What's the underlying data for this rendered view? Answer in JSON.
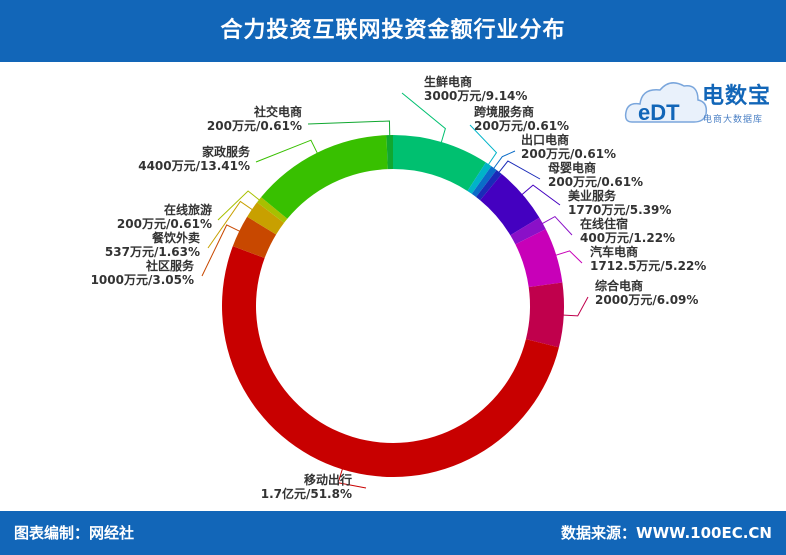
{
  "header": {
    "title": "合力投资互联网投资金额行业分布"
  },
  "footer": {
    "left": "图表编制：网经社",
    "right": "数据来源：WWW.100EC.CN"
  },
  "logo": {
    "letters": "eDT",
    "name": "电数宝",
    "subtitle": "电商大数据库"
  },
  "chart_data": {
    "type": "pie",
    "title": "合力投资互联网投资金额行业分布",
    "slices": [
      {
        "name": "生鲜电商",
        "value": 9.14,
        "label": "3000万元/9.14%",
        "color": "#00c070"
      },
      {
        "name": "跨境服务商",
        "value": 0.61,
        "label": "200万元/0.61%",
        "color": "#00b4c8"
      },
      {
        "name": "出口电商",
        "value": 0.61,
        "label": "200万元/0.61%",
        "color": "#0a6cc8"
      },
      {
        "name": "母婴电商",
        "value": 0.61,
        "label": "200万元/0.61%",
        "color": "#1a2ab8"
      },
      {
        "name": "美业服务",
        "value": 5.39,
        "label": "1770万元/5.39%",
        "color": "#4400c0"
      },
      {
        "name": "在线住宿",
        "value": 1.22,
        "label": "400万元/1.22%",
        "color": "#8a10c8"
      },
      {
        "name": "汽车电商",
        "value": 5.22,
        "label": "1712.5万元/5.22%",
        "color": "#c800b8"
      },
      {
        "name": "综合电商",
        "value": 6.09,
        "label": "2000万元/6.09%",
        "color": "#c0004c"
      },
      {
        "name": "移动出行",
        "value": 51.8,
        "label": "1.7亿元/51.8%",
        "color": "#c80000"
      },
      {
        "name": "社区服务",
        "value": 3.05,
        "label": "1000万元/3.05%",
        "color": "#c84800"
      },
      {
        "name": "餐饮外卖",
        "value": 1.63,
        "label": "537万元/1.63%",
        "color": "#c8a000"
      },
      {
        "name": "在线旅游",
        "value": 0.61,
        "label": "200万元/0.61%",
        "color": "#a8c000"
      },
      {
        "name": "家政服务",
        "value": 13.41,
        "label": "4400万元/13.41%",
        "color": "#38c000"
      },
      {
        "name": "社交电商",
        "value": 0.61,
        "label": "200万元/0.61%",
        "color": "#10a830"
      }
    ]
  }
}
